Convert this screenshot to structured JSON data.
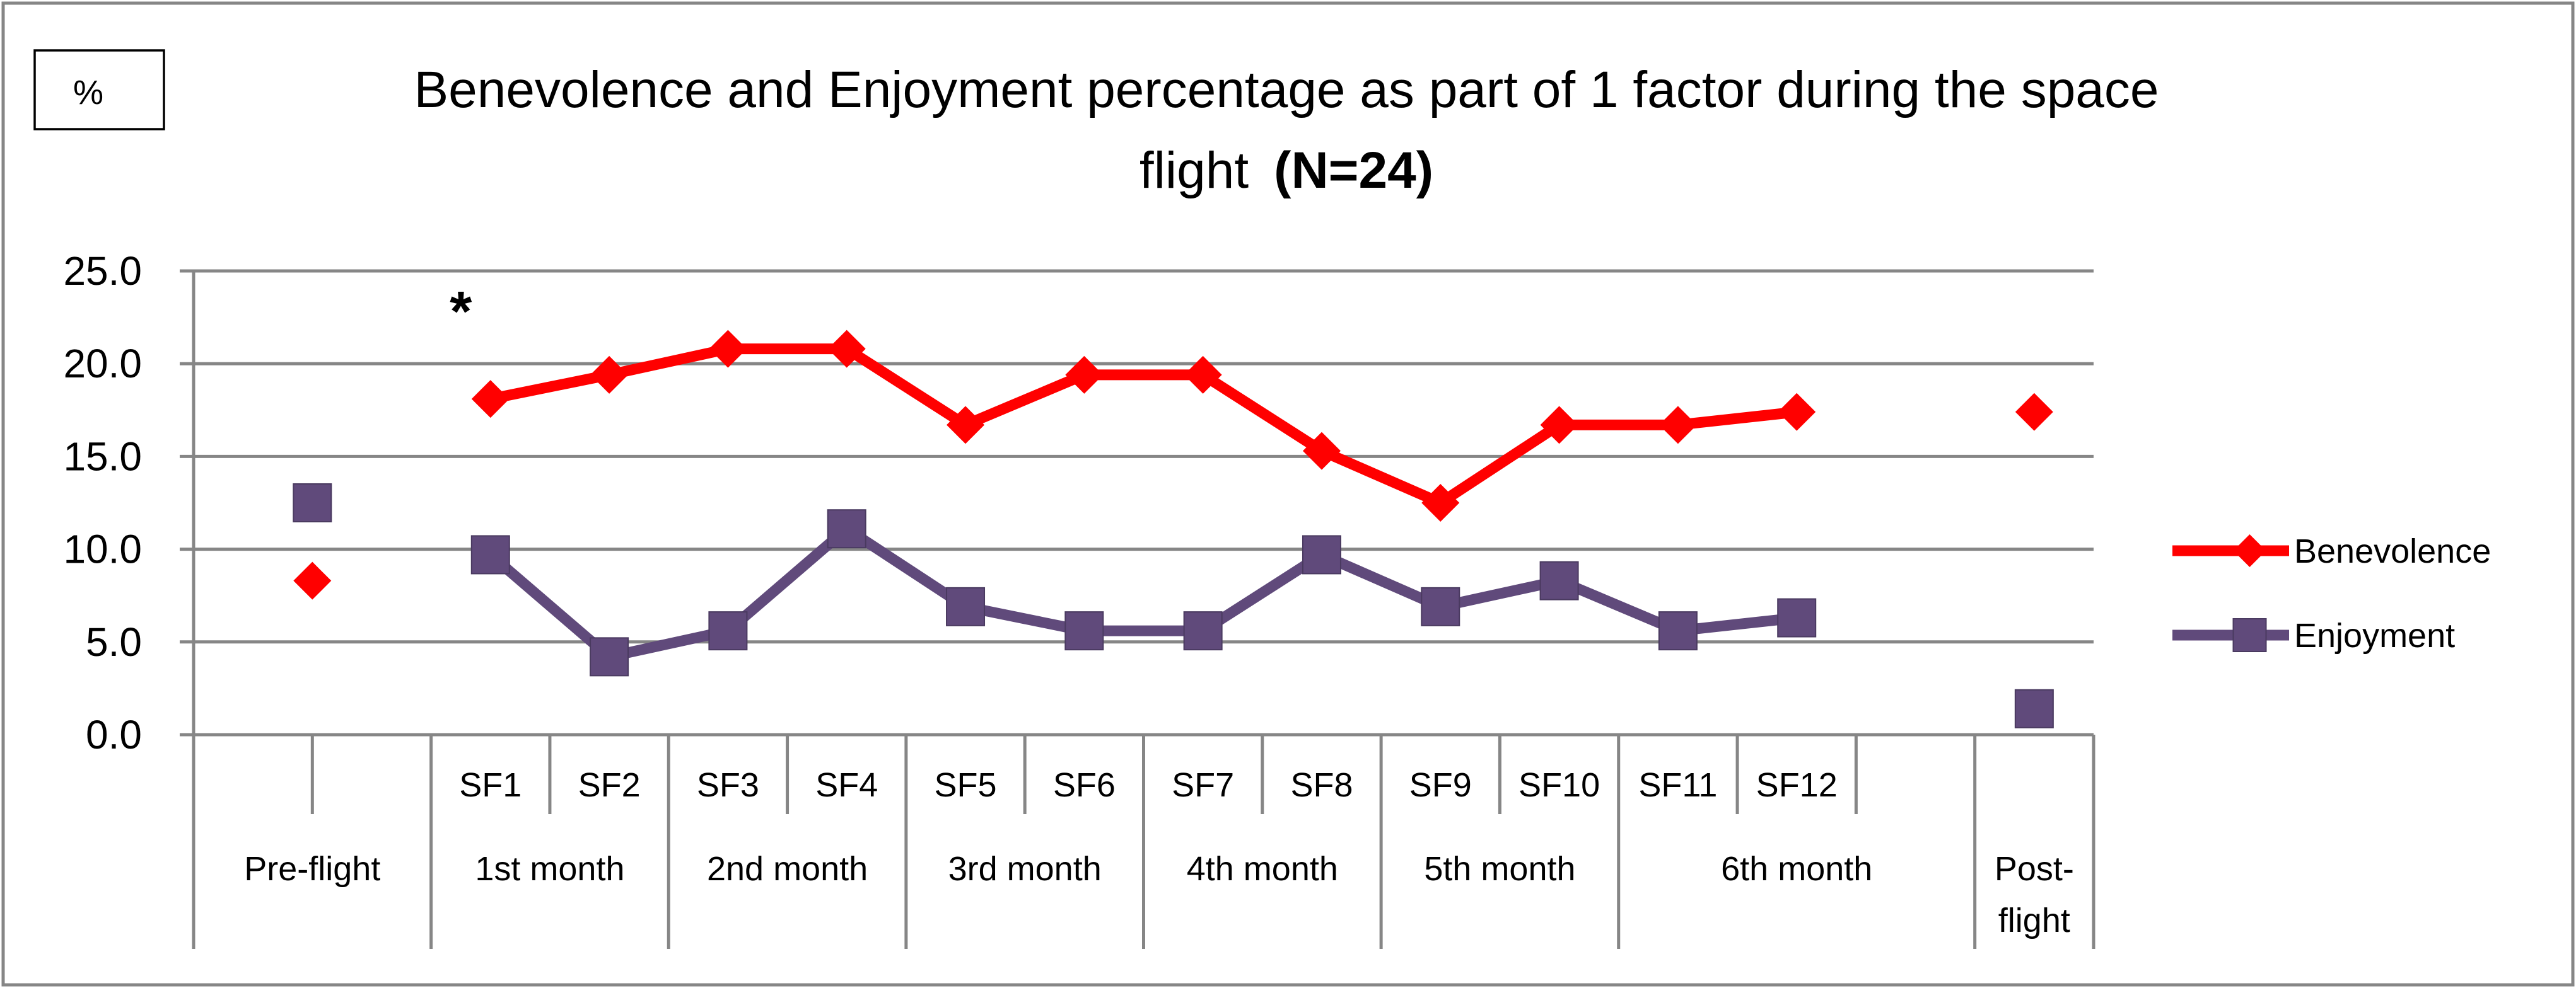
{
  "chart_data": {
    "type": "line",
    "unit_label": "%",
    "title_line1": "Benevolence and Enjoyment percentage as part of 1 factor during the space",
    "title_line2": "flight",
    "title_emphasis": "(N=24)",
    "ylim": [
      0,
      25
    ],
    "yticks": [
      "25.0",
      "20.0",
      "15.0",
      "10.0",
      "5.0",
      "0.0"
    ],
    "categories": [
      "",
      "",
      "SF1",
      "SF2",
      "SF3",
      "SF4",
      "SF5",
      "SF6",
      "SF7",
      "SF8",
      "SF9",
      "SF10",
      "SF11",
      "SF12",
      "",
      ""
    ],
    "groups": [
      {
        "label": "Pre-flight",
        "start": 0,
        "end": 1
      },
      {
        "label": "1st month",
        "start": 2,
        "end": 3
      },
      {
        "label": "2nd month",
        "start": 4,
        "end": 5
      },
      {
        "label": "3rd month",
        "start": 6,
        "end": 7
      },
      {
        "label": "4th month",
        "start": 8,
        "end": 9
      },
      {
        "label": "5th month",
        "start": 10,
        "end": 11
      },
      {
        "label": "6th month",
        "start": 12,
        "end": 14
      },
      {
        "label": "Post-flight",
        "label_lines": [
          "Post-",
          "flight"
        ],
        "start": 15,
        "end": 15
      }
    ],
    "series": [
      {
        "name": "Benevolence",
        "color": "#ff0000",
        "marker": "diamond",
        "points": [
          {
            "x": 0.5,
            "y": 8.3,
            "connect": false
          },
          {
            "x": 2,
            "y": 18.1,
            "connect": true
          },
          {
            "x": 3,
            "y": 19.4,
            "connect": true
          },
          {
            "x": 4,
            "y": 20.8,
            "connect": true
          },
          {
            "x": 5,
            "y": 20.8,
            "connect": true
          },
          {
            "x": 6,
            "y": 16.7,
            "connect": true
          },
          {
            "x": 7,
            "y": 19.4,
            "connect": true
          },
          {
            "x": 8,
            "y": 19.4,
            "connect": true
          },
          {
            "x": 9,
            "y": 15.3,
            "connect": true
          },
          {
            "x": 10,
            "y": 12.5,
            "connect": true
          },
          {
            "x": 11,
            "y": 16.7,
            "connect": true
          },
          {
            "x": 12,
            "y": 16.7,
            "connect": true
          },
          {
            "x": 13,
            "y": 17.4,
            "connect": true
          },
          {
            "x": 15,
            "y": 17.4,
            "connect": false
          }
        ]
      },
      {
        "name": "Enjoyment",
        "color": "#604a7b",
        "marker": "square",
        "points": [
          {
            "x": 0.5,
            "y": 12.5,
            "connect": false
          },
          {
            "x": 2,
            "y": 9.7,
            "connect": true
          },
          {
            "x": 3,
            "y": 4.2,
            "connect": true
          },
          {
            "x": 4,
            "y": 5.6,
            "connect": true
          },
          {
            "x": 5,
            "y": 11.1,
            "connect": true
          },
          {
            "x": 6,
            "y": 6.9,
            "connect": true
          },
          {
            "x": 7,
            "y": 5.6,
            "connect": true
          },
          {
            "x": 8,
            "y": 5.6,
            "connect": true
          },
          {
            "x": 9,
            "y": 9.7,
            "connect": true
          },
          {
            "x": 10,
            "y": 6.9,
            "connect": true
          },
          {
            "x": 11,
            "y": 8.3,
            "connect": true
          },
          {
            "x": 12,
            "y": 5.6,
            "connect": true
          },
          {
            "x": 13,
            "y": 6.3,
            "connect": true
          },
          {
            "x": 15,
            "y": 1.4,
            "connect": false
          }
        ]
      }
    ],
    "annotations": [
      {
        "text": "*",
        "x": 1.75,
        "y": 23.3
      }
    ],
    "legend_position": "right"
  }
}
